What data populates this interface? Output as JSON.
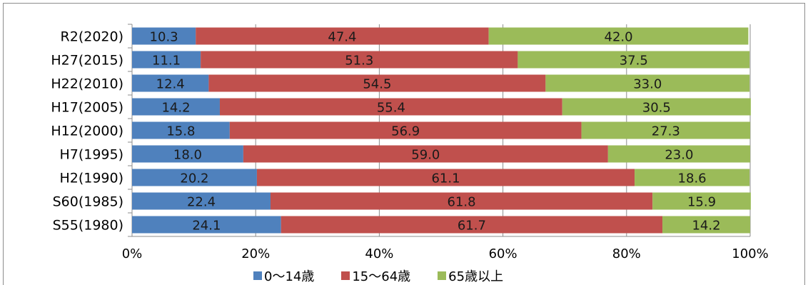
{
  "colors": {
    "age_0_14": "#4f81bd",
    "age_15_64": "#c0504d",
    "age_65_plus": "#9bbb59",
    "grid": "#8c8c8c"
  },
  "chart_data": {
    "type": "bar",
    "orientation": "horizontal",
    "stacked": "percent",
    "categories": [
      "R2(2020)",
      "H27(2015)",
      "H22(2010)",
      "H17(2005)",
      "H12(2000)",
      "H7(1995)",
      "H2(1990)",
      "S60(1985)",
      "S55(1980)"
    ],
    "series": [
      {
        "name": "0〜14歳",
        "values": [
          10.3,
          11.1,
          12.4,
          14.2,
          15.8,
          18.0,
          20.2,
          22.4,
          24.1
        ]
      },
      {
        "name": "15〜64歳",
        "values": [
          47.4,
          51.3,
          54.5,
          55.4,
          56.9,
          59.0,
          61.1,
          61.8,
          61.7
        ]
      },
      {
        "name": "65歳以上",
        "values": [
          42.0,
          37.5,
          33.0,
          30.5,
          27.3,
          23.0,
          18.6,
          15.9,
          14.2
        ]
      }
    ],
    "xticks": [
      "0%",
      "20%",
      "40%",
      "60%",
      "80%",
      "100%"
    ],
    "xlim": [
      0,
      100
    ],
    "grid": true,
    "legend": "bottom"
  }
}
